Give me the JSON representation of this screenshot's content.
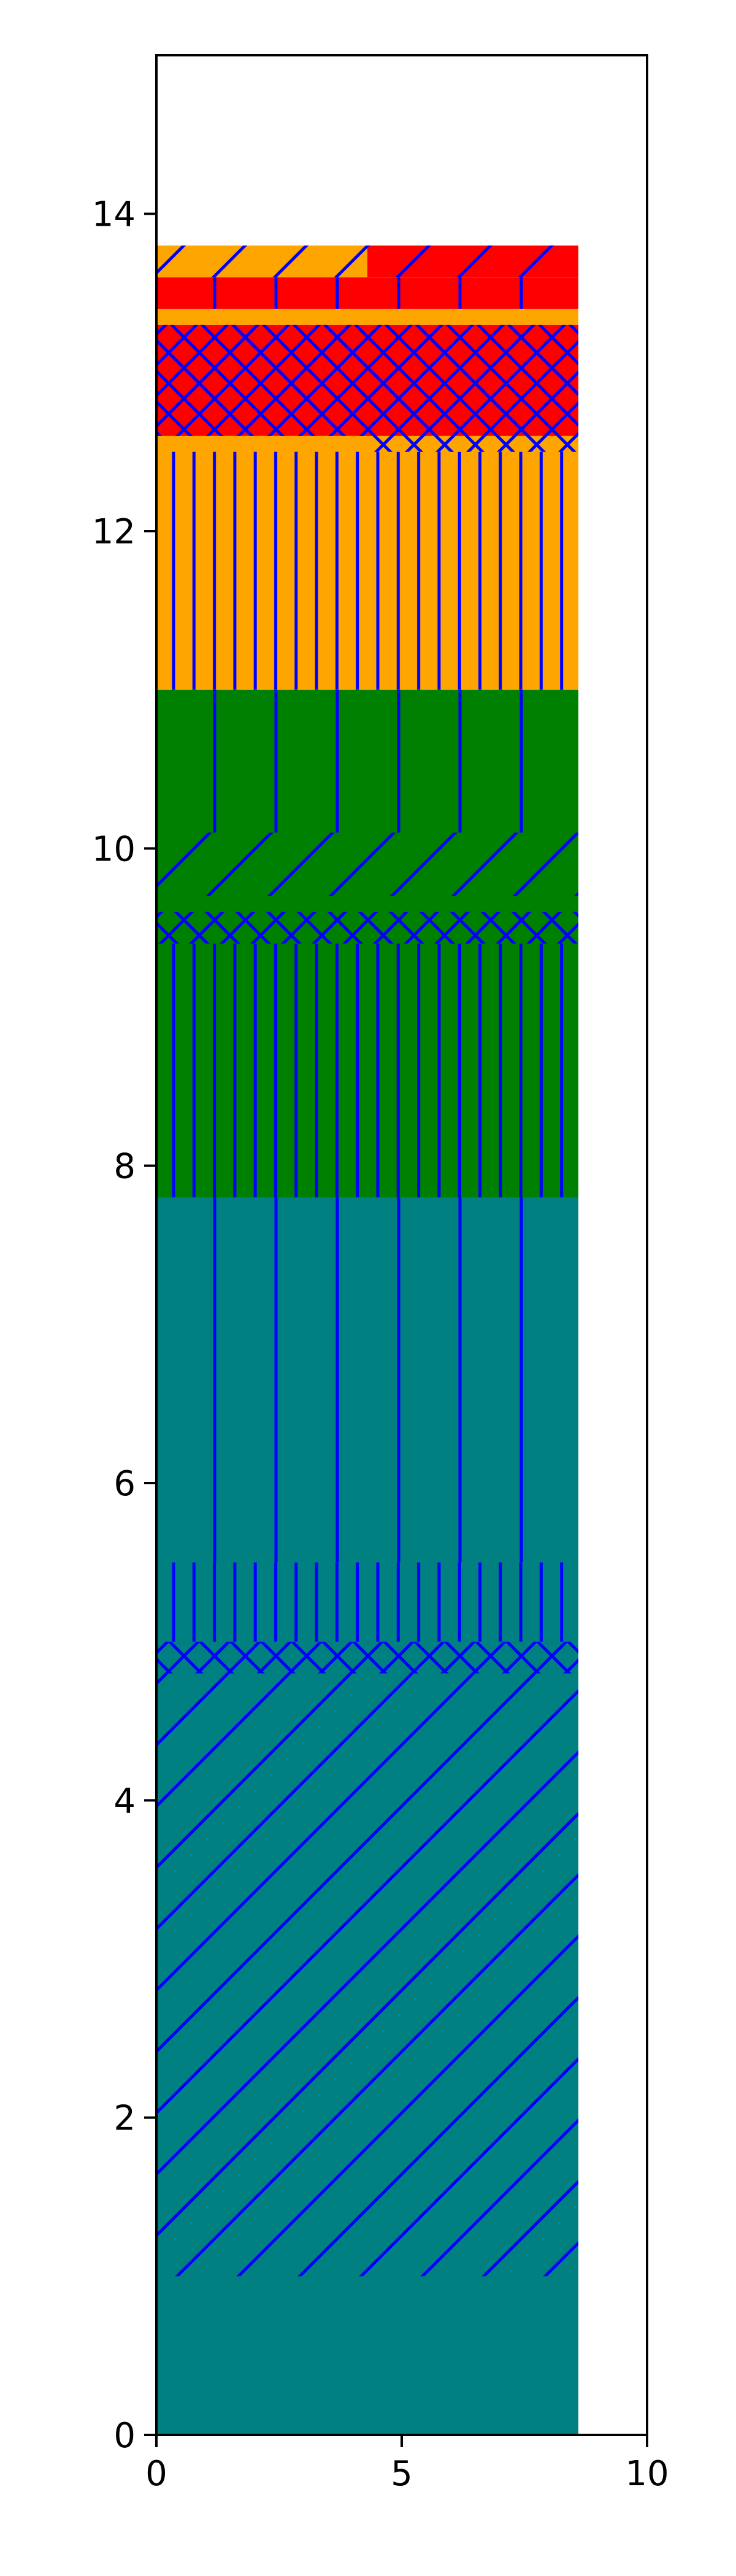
{
  "chart_data": {
    "type": "bar",
    "title": "",
    "xlabel": "",
    "ylabel": "",
    "xlim": [
      0,
      10
    ],
    "ylim": [
      0,
      15
    ],
    "xticks": [
      "0",
      "5",
      "10"
    ],
    "yticks": [
      "0",
      "2",
      "4",
      "6",
      "8",
      "10",
      "12",
      "14"
    ],
    "hatch_color": "#0000ff",
    "bar_span": [
      0,
      8.6
    ],
    "segments": [
      {
        "bottom": 0.0,
        "top": 7.8,
        "x0": 0.0,
        "x1": 8.6,
        "color": "#008080",
        "hatch": "none"
      },
      {
        "bottom": 1.0,
        "top": 4.8,
        "x0": 0.0,
        "x1": 8.6,
        "color": "#008080",
        "hatch": "diagonal"
      },
      {
        "bottom": 4.8,
        "top": 5.0,
        "x0": 0.0,
        "x1": 8.6,
        "color": "#008080",
        "hatch": "cross"
      },
      {
        "bottom": 5.0,
        "top": 5.5,
        "x0": 0.0,
        "x1": 8.6,
        "color": "#008080",
        "hatch": "vertical-dense"
      },
      {
        "bottom": 5.5,
        "top": 7.8,
        "x0": 0.0,
        "x1": 8.6,
        "color": "#008080",
        "hatch": "vertical-sparse"
      },
      {
        "bottom": 7.8,
        "top": 11.0,
        "x0": 0.0,
        "x1": 8.6,
        "color": "#008000",
        "hatch": "none"
      },
      {
        "bottom": 7.8,
        "top": 9.4,
        "x0": 0.0,
        "x1": 8.6,
        "color": "#008000",
        "hatch": "vertical-dense"
      },
      {
        "bottom": 9.4,
        "top": 9.6,
        "x0": 0.0,
        "x1": 8.6,
        "color": "#008000",
        "hatch": "cross"
      },
      {
        "bottom": 9.7,
        "top": 10.1,
        "x0": 0.0,
        "x1": 8.6,
        "color": "#008000",
        "hatch": "diagonal"
      },
      {
        "bottom": 10.1,
        "top": 11.0,
        "x0": 0.0,
        "x1": 8.6,
        "color": "#008000",
        "hatch": "vertical-sparse"
      },
      {
        "bottom": 11.0,
        "top": 12.6,
        "x0": 0.0,
        "x1": 8.6,
        "color": "#ffa500",
        "hatch": "none"
      },
      {
        "bottom": 11.0,
        "top": 12.5,
        "x0": 0.0,
        "x1": 8.6,
        "color": "#ffa500",
        "hatch": "vertical-dense"
      },
      {
        "bottom": 12.5,
        "top": 12.6,
        "x0": 4.3,
        "x1": 8.6,
        "color": "#ffa500",
        "hatch": "cross"
      },
      {
        "bottom": 12.6,
        "top": 13.3,
        "x0": 0.0,
        "x1": 8.6,
        "color": "#ff0000",
        "hatch": "cross"
      },
      {
        "bottom": 13.3,
        "top": 13.4,
        "x0": 0.0,
        "x1": 8.6,
        "color": "#ffa500",
        "hatch": "none"
      },
      {
        "bottom": 13.4,
        "top": 13.6,
        "x0": 0.0,
        "x1": 8.6,
        "color": "#ff0000",
        "hatch": "vertical-sparse"
      },
      {
        "bottom": 13.6,
        "top": 13.8,
        "x0": 0.0,
        "x1": 4.3,
        "color": "#ffa500",
        "hatch": "diagonal"
      },
      {
        "bottom": 13.6,
        "top": 13.8,
        "x0": 4.3,
        "x1": 8.6,
        "color": "#ff0000",
        "hatch": "diagonal"
      }
    ]
  }
}
